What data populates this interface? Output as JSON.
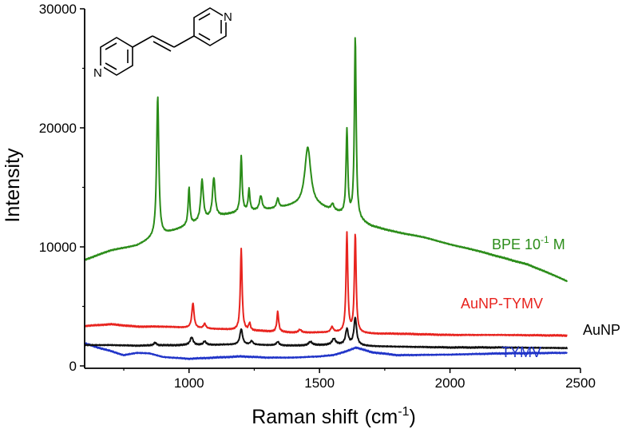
{
  "chart_data": {
    "type": "line",
    "xlabel": "Raman shift",
    "xlabel_unit_base": "(cm",
    "xlabel_unit_exp": "-1",
    "xlabel_unit_close": ")",
    "ylabel": "Intensity",
    "xlim": [
      600,
      2500
    ],
    "ylim": [
      -200,
      30000
    ],
    "x_ticks": [
      1000,
      1500,
      2000,
      2500
    ],
    "y_ticks": [
      0,
      10000,
      20000,
      30000
    ],
    "x_tick_labels": [
      "1000",
      "1500",
      "2000",
      "2500"
    ],
    "y_tick_labels": [
      "0",
      "10000",
      "20000",
      "30000"
    ],
    "grid": false,
    "series": [
      {
        "name": "BPE 10-1 M",
        "label_base": "BPE 10",
        "label_exp": "-1",
        "label_tail": " M",
        "color": "#2a8c18",
        "baseline": [
          [
            600,
            8900
          ],
          [
            650,
            9300
          ],
          [
            700,
            9700
          ],
          [
            800,
            10100
          ],
          [
            850,
            10600
          ],
          [
            900,
            11000
          ],
          [
            950,
            11400
          ],
          [
            1000,
            11800
          ],
          [
            1100,
            12500
          ],
          [
            1200,
            12900
          ],
          [
            1300,
            13100
          ],
          [
            1400,
            13400
          ],
          [
            1500,
            13300
          ],
          [
            1550,
            13000
          ],
          [
            1600,
            12600
          ],
          [
            1650,
            12200
          ],
          [
            1700,
            11700
          ],
          [
            1800,
            11200
          ],
          [
            1900,
            10800
          ],
          [
            2000,
            10200
          ],
          [
            2100,
            9700
          ],
          [
            2200,
            9100
          ],
          [
            2300,
            8500
          ],
          [
            2400,
            7600
          ],
          [
            2450,
            7100
          ]
        ],
        "peaks": [
          [
            880,
            11800,
            5
          ],
          [
            1000,
            3100,
            4
          ],
          [
            1050,
            3400,
            6
          ],
          [
            1095,
            3300,
            6
          ],
          [
            1200,
            4700,
            4
          ],
          [
            1230,
            1800,
            4
          ],
          [
            1275,
            1200,
            6
          ],
          [
            1340,
            800,
            5
          ],
          [
            1455,
            5000,
            14
          ],
          [
            1550,
            500,
            6
          ],
          [
            1605,
            7200,
            4
          ],
          [
            1637,
            15300,
            4
          ]
        ]
      },
      {
        "name": "AuNP-TYMV",
        "color": "#e8231e",
        "baseline": [
          [
            600,
            3350
          ],
          [
            700,
            3500
          ],
          [
            800,
            3300
          ],
          [
            900,
            3300
          ],
          [
            1000,
            3200
          ],
          [
            1100,
            3100
          ],
          [
            1200,
            3000
          ],
          [
            1300,
            2900
          ],
          [
            1400,
            2800
          ],
          [
            1500,
            2800
          ],
          [
            1600,
            2800
          ],
          [
            1700,
            2700
          ],
          [
            1800,
            2700
          ],
          [
            2000,
            2600
          ],
          [
            2200,
            2600
          ],
          [
            2450,
            2550
          ]
        ],
        "peaks": [
          [
            1015,
            2100,
            5
          ],
          [
            1060,
            400,
            5
          ],
          [
            1200,
            6800,
            4
          ],
          [
            1232,
            600,
            4
          ],
          [
            1340,
            1700,
            4
          ],
          [
            1425,
            250,
            6
          ],
          [
            1548,
            450,
            6
          ],
          [
            1605,
            8300,
            4
          ],
          [
            1637,
            8300,
            4
          ]
        ]
      },
      {
        "name": "AuNP",
        "color": "#111111",
        "baseline": [
          [
            600,
            1750
          ],
          [
            700,
            1750
          ],
          [
            800,
            1700
          ],
          [
            1000,
            1750
          ],
          [
            1200,
            1800
          ],
          [
            1400,
            1700
          ],
          [
            1600,
            1800
          ],
          [
            1700,
            1650
          ],
          [
            2000,
            1550
          ],
          [
            2200,
            1550
          ],
          [
            2450,
            1500
          ]
        ],
        "peaks": [
          [
            870,
            250,
            6
          ],
          [
            1010,
            650,
            7
          ],
          [
            1060,
            300,
            6
          ],
          [
            1200,
            1300,
            6
          ],
          [
            1240,
            300,
            6
          ],
          [
            1340,
            300,
            6
          ],
          [
            1465,
            300,
            8
          ],
          [
            1555,
            500,
            8
          ],
          [
            1605,
            1300,
            6
          ],
          [
            1637,
            2300,
            6
          ]
        ]
      },
      {
        "name": "TYMV",
        "color": "#1f33c8",
        "baseline": [
          [
            600,
            1900
          ],
          [
            650,
            1550
          ],
          [
            700,
            1250
          ],
          [
            750,
            900
          ],
          [
            800,
            1100
          ],
          [
            850,
            1050
          ],
          [
            900,
            750
          ],
          [
            1000,
            600
          ],
          [
            1100,
            700
          ],
          [
            1200,
            800
          ],
          [
            1300,
            700
          ],
          [
            1400,
            700
          ],
          [
            1500,
            800
          ],
          [
            1550,
            900
          ],
          [
            1600,
            1200
          ],
          [
            1640,
            1550
          ],
          [
            1700,
            1150
          ],
          [
            1800,
            900
          ],
          [
            2000,
            950
          ],
          [
            2200,
            1050
          ],
          [
            2450,
            1100
          ]
        ],
        "peaks": []
      }
    ]
  },
  "colors": {
    "axis": "#000000",
    "background": "#ffffff"
  },
  "inset": {
    "molecule": "4,4'-bipyridylethylene",
    "atom_symbol": "N"
  }
}
